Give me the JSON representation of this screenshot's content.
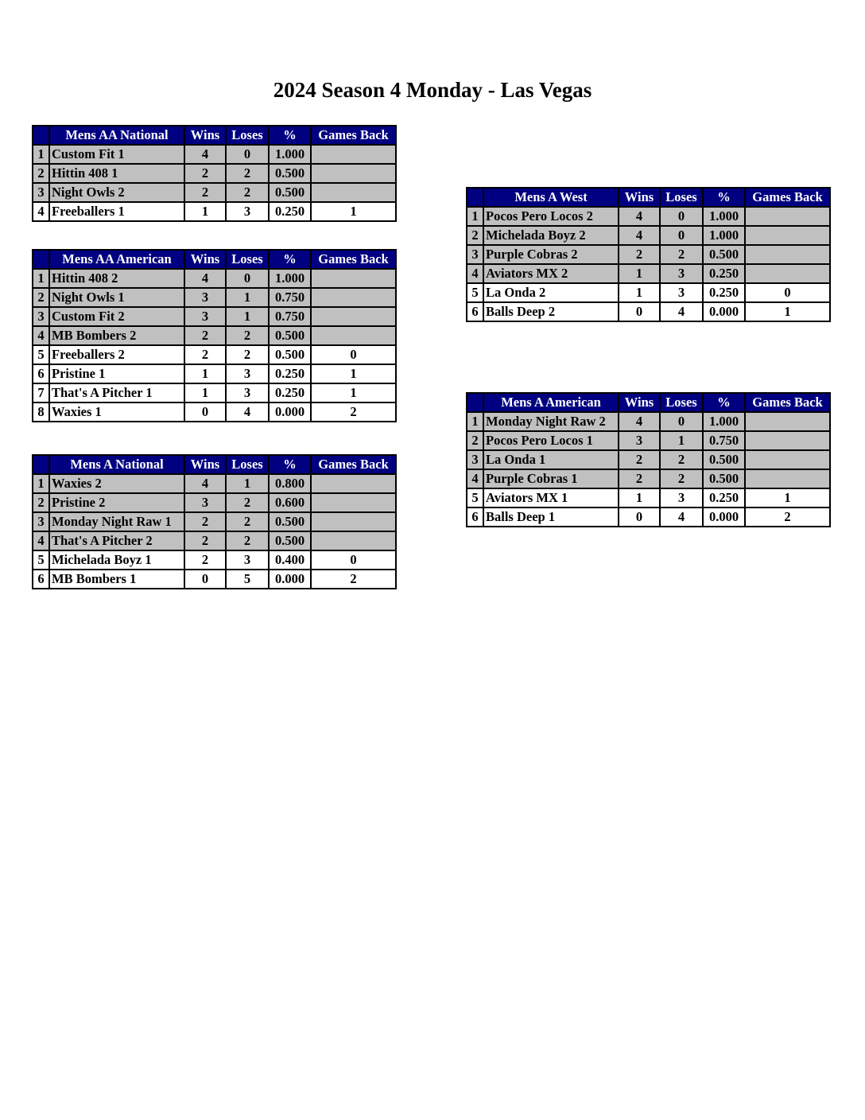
{
  "title": "2024 Season 4 Monday - Las Vegas",
  "colors": {
    "header_bg": "#000080",
    "header_text": "#ffffff",
    "playoff_row": "#c0c0c0",
    "other_row": "#ffffff"
  },
  "columns": [
    "Wins",
    "Loses",
    "%",
    "Games Back"
  ],
  "tables": [
    {
      "division": "Mens AA National",
      "pos": "left1",
      "rows": [
        {
          "rank": "1",
          "team": "Custom Fit 1",
          "wins": "4",
          "loses": "0",
          "pct": "1.000",
          "gb": "",
          "shaded": true
        },
        {
          "rank": "2",
          "team": "Hittin 408 1",
          "wins": "2",
          "loses": "2",
          "pct": "0.500",
          "gb": "",
          "shaded": true
        },
        {
          "rank": "3",
          "team": "Night Owls 2",
          "wins": "2",
          "loses": "2",
          "pct": "0.500",
          "gb": "",
          "shaded": true
        },
        {
          "rank": "4",
          "team": "Freeballers 1",
          "wins": "1",
          "loses": "3",
          "pct": "0.250",
          "gb": "1",
          "shaded": false
        }
      ]
    },
    {
      "division": "Mens AA American",
      "pos": "left2",
      "rows": [
        {
          "rank": "1",
          "team": "Hittin 408 2",
          "wins": "4",
          "loses": "0",
          "pct": "1.000",
          "gb": "",
          "shaded": true
        },
        {
          "rank": "2",
          "team": "Night Owls 1",
          "wins": "3",
          "loses": "1",
          "pct": "0.750",
          "gb": "",
          "shaded": true
        },
        {
          "rank": "3",
          "team": "Custom Fit 2",
          "wins": "3",
          "loses": "1",
          "pct": "0.750",
          "gb": "",
          "shaded": true
        },
        {
          "rank": "4",
          "team": "MB Bombers 2",
          "wins": "2",
          "loses": "2",
          "pct": "0.500",
          "gb": "",
          "shaded": true
        },
        {
          "rank": "5",
          "team": "Freeballers 2",
          "wins": "2",
          "loses": "2",
          "pct": "0.500",
          "gb": "0",
          "shaded": false
        },
        {
          "rank": "6",
          "team": "Pristine 1",
          "wins": "1",
          "loses": "3",
          "pct": "0.250",
          "gb": "1",
          "shaded": false
        },
        {
          "rank": "7",
          "team": "That's A Pitcher 1",
          "wins": "1",
          "loses": "3",
          "pct": "0.250",
          "gb": "1",
          "shaded": false
        },
        {
          "rank": "8",
          "team": "Waxies 1",
          "wins": "0",
          "loses": "4",
          "pct": "0.000",
          "gb": "2",
          "shaded": false
        }
      ]
    },
    {
      "division": "Mens A National",
      "pos": "left3",
      "rows": [
        {
          "rank": "1",
          "team": "Waxies 2",
          "wins": "4",
          "loses": "1",
          "pct": "0.800",
          "gb": "",
          "shaded": true
        },
        {
          "rank": "2",
          "team": "Pristine 2",
          "wins": "3",
          "loses": "2",
          "pct": "0.600",
          "gb": "",
          "shaded": true
        },
        {
          "rank": "3",
          "team": "Monday Night Raw 1",
          "wins": "2",
          "loses": "2",
          "pct": "0.500",
          "gb": "",
          "shaded": true
        },
        {
          "rank": "4",
          "team": "That's A Pitcher 2",
          "wins": "2",
          "loses": "2",
          "pct": "0.500",
          "gb": "",
          "shaded": true
        },
        {
          "rank": "5",
          "team": "Michelada Boyz 1",
          "wins": "2",
          "loses": "3",
          "pct": "0.400",
          "gb": "0",
          "shaded": false
        },
        {
          "rank": "6",
          "team": "MB Bombers 1",
          "wins": "0",
          "loses": "5",
          "pct": "0.000",
          "gb": "2",
          "shaded": false
        }
      ]
    },
    {
      "division": "Mens A West",
      "pos": "right1",
      "rows": [
        {
          "rank": "1",
          "team": "Pocos Pero Locos 2",
          "wins": "4",
          "loses": "0",
          "pct": "1.000",
          "gb": "",
          "shaded": true
        },
        {
          "rank": "2",
          "team": "Michelada Boyz 2",
          "wins": "4",
          "loses": "0",
          "pct": "1.000",
          "gb": "",
          "shaded": true
        },
        {
          "rank": "3",
          "team": "Purple Cobras 2",
          "wins": "2",
          "loses": "2",
          "pct": "0.500",
          "gb": "",
          "shaded": true
        },
        {
          "rank": "4",
          "team": "Aviators MX 2",
          "wins": "1",
          "loses": "3",
          "pct": "0.250",
          "gb": "",
          "shaded": true
        },
        {
          "rank": "5",
          "team": "La Onda 2",
          "wins": "1",
          "loses": "3",
          "pct": "0.250",
          "gb": "0",
          "shaded": false
        },
        {
          "rank": "6",
          "team": "Balls Deep 2",
          "wins": "0",
          "loses": "4",
          "pct": "0.000",
          "gb": "1",
          "shaded": false
        }
      ]
    },
    {
      "division": "Mens A American",
      "pos": "right2",
      "rows": [
        {
          "rank": "1",
          "team": "Monday Night Raw 2",
          "wins": "4",
          "loses": "0",
          "pct": "1.000",
          "gb": "",
          "shaded": true
        },
        {
          "rank": "2",
          "team": "Pocos Pero Locos 1",
          "wins": "3",
          "loses": "1",
          "pct": "0.750",
          "gb": "",
          "shaded": true
        },
        {
          "rank": "3",
          "team": "La Onda 1",
          "wins": "2",
          "loses": "2",
          "pct": "0.500",
          "gb": "",
          "shaded": true
        },
        {
          "rank": "4",
          "team": "Purple Cobras 1",
          "wins": "2",
          "loses": "2",
          "pct": "0.500",
          "gb": "",
          "shaded": true
        },
        {
          "rank": "5",
          "team": "Aviators MX 1",
          "wins": "1",
          "loses": "3",
          "pct": "0.250",
          "gb": "1",
          "shaded": false
        },
        {
          "rank": "6",
          "team": "Balls Deep 1",
          "wins": "0",
          "loses": "4",
          "pct": "0.000",
          "gb": "2",
          "shaded": false
        }
      ]
    }
  ]
}
